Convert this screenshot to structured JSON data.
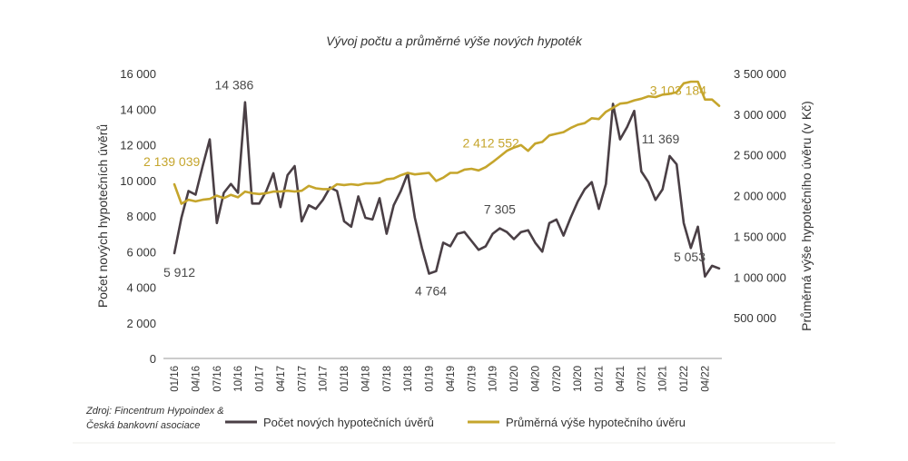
{
  "chart_data": {
    "type": "line",
    "title": "Vývoj počtu a průměrné výše nových hypoték",
    "ylabel_left": "Počet nových hypotečních úvěrů",
    "ylabel_right": "Průměrná výše hypotečního úvěru (v Kč)",
    "ylim_left": [
      0,
      16000
    ],
    "ylim_right": [
      0,
      3500000
    ],
    "yticks_left": [
      "16 000",
      "14 000",
      "12 000",
      "10 000",
      "8 000",
      "6 000",
      "4 000",
      "2 000",
      "0"
    ],
    "yticks_right": [
      "3 500 000",
      "3 000 000",
      "2 500 000",
      "2 000 000",
      "1 500 000",
      "1 000 000",
      "500 000"
    ],
    "x_tick_labels": [
      "01/16",
      "04/16",
      "07/16",
      "10/16",
      "01/17",
      "04/17",
      "07/17",
      "10/17",
      "01/18",
      "04/18",
      "07/18",
      "10/18",
      "01/19",
      "04/19",
      "07/19",
      "10/19",
      "01/20",
      "04/20",
      "07/20",
      "10/20",
      "01/21",
      "04/21",
      "07/21",
      "10/21",
      "01/22",
      "04/22"
    ],
    "x": [
      "01/16",
      "02/16",
      "03/16",
      "04/16",
      "05/16",
      "06/16",
      "07/16",
      "08/16",
      "09/16",
      "10/16",
      "11/16",
      "12/16",
      "01/17",
      "02/17",
      "03/17",
      "04/17",
      "05/17",
      "06/17",
      "07/17",
      "08/17",
      "09/17",
      "10/17",
      "11/17",
      "12/17",
      "01/18",
      "02/18",
      "03/18",
      "04/18",
      "05/18",
      "06/18",
      "07/18",
      "08/18",
      "09/18",
      "10/18",
      "11/18",
      "12/18",
      "01/19",
      "02/19",
      "03/19",
      "04/19",
      "05/19",
      "06/19",
      "07/19",
      "08/19",
      "09/19",
      "10/19",
      "11/19",
      "12/19",
      "01/20",
      "02/20",
      "03/20",
      "04/20",
      "05/20",
      "06/20",
      "07/20",
      "08/20",
      "09/20",
      "10/20",
      "11/20",
      "12/20",
      "01/21",
      "02/21",
      "03/21",
      "04/21",
      "05/21",
      "06/21",
      "07/21",
      "08/21",
      "09/21",
      "10/21",
      "11/21",
      "12/21",
      "01/22",
      "02/22",
      "03/22",
      "04/22",
      "05/22",
      "06/22"
    ],
    "series": [
      {
        "name": "Počet nových hypotečních úvěrů",
        "axis": "left",
        "color": "#4a3f45",
        "values": [
          5912,
          7900,
          9400,
          9200,
          10800,
          12300,
          7600,
          9300,
          9800,
          9300,
          14386,
          8700,
          8700,
          9400,
          10400,
          8500,
          10300,
          10800,
          7700,
          8600,
          8400,
          8900,
          9600,
          9400,
          7700,
          7400,
          9100,
          7900,
          7800,
          9000,
          7000,
          8600,
          9400,
          10400,
          7900,
          6200,
          4764,
          4900,
          6500,
          6300,
          7000,
          7100,
          6600,
          6100,
          6300,
          7000,
          7305,
          7100,
          6700,
          7100,
          7200,
          6500,
          6000,
          7600,
          7800,
          6900,
          7900,
          8800,
          9500,
          9900,
          8400,
          9800,
          14300,
          12300,
          13000,
          13900,
          10500,
          9900,
          8900,
          9500,
          11369,
          10900,
          7600,
          6200,
          7400,
          4600,
          5200,
          5053
        ],
        "annotations": [
          {
            "index": 0,
            "label": "5 912"
          },
          {
            "index": 10,
            "label": "14 386"
          },
          {
            "index": 36,
            "label": "4 764"
          },
          {
            "index": 46,
            "label": "7 305"
          },
          {
            "index": 70,
            "label": "11 369"
          },
          {
            "index": 77,
            "label": "5 053"
          }
        ]
      },
      {
        "name": "Průměrná výše hypotečního úvěru",
        "axis": "right",
        "color": "#c5a52c",
        "values": [
          2139039,
          1900000,
          1950000,
          1930000,
          1950000,
          1960000,
          2000000,
          1970000,
          2010000,
          1980000,
          2050000,
          2030000,
          2020000,
          2030000,
          2050000,
          2050000,
          2060000,
          2050000,
          2060000,
          2120000,
          2090000,
          2080000,
          2080000,
          2140000,
          2130000,
          2140000,
          2130000,
          2150000,
          2150000,
          2160000,
          2200000,
          2210000,
          2250000,
          2280000,
          2260000,
          2270000,
          2280000,
          2180000,
          2220000,
          2280000,
          2280000,
          2320000,
          2330000,
          2310000,
          2350000,
          2412552,
          2480000,
          2550000,
          2590000,
          2620000,
          2550000,
          2640000,
          2660000,
          2740000,
          2760000,
          2780000,
          2830000,
          2870000,
          2890000,
          2950000,
          2940000,
          3030000,
          3080000,
          3130000,
          3140000,
          3170000,
          3190000,
          3220000,
          3210000,
          3240000,
          3250000,
          3270000,
          3380000,
          3400000,
          3400000,
          3180000,
          3180000,
          3103184
        ],
        "annotations": [
          {
            "index": 0,
            "label": "2 139 039"
          },
          {
            "index": 45,
            "label": "2 412 552"
          },
          {
            "index": 77,
            "label": "3 103 184"
          }
        ]
      }
    ],
    "grid": false,
    "legend_position": "bottom"
  },
  "source": {
    "line1": "Zdroj: Fincentrum Hypoindex &",
    "line2": "Česká bankovní asociace"
  }
}
